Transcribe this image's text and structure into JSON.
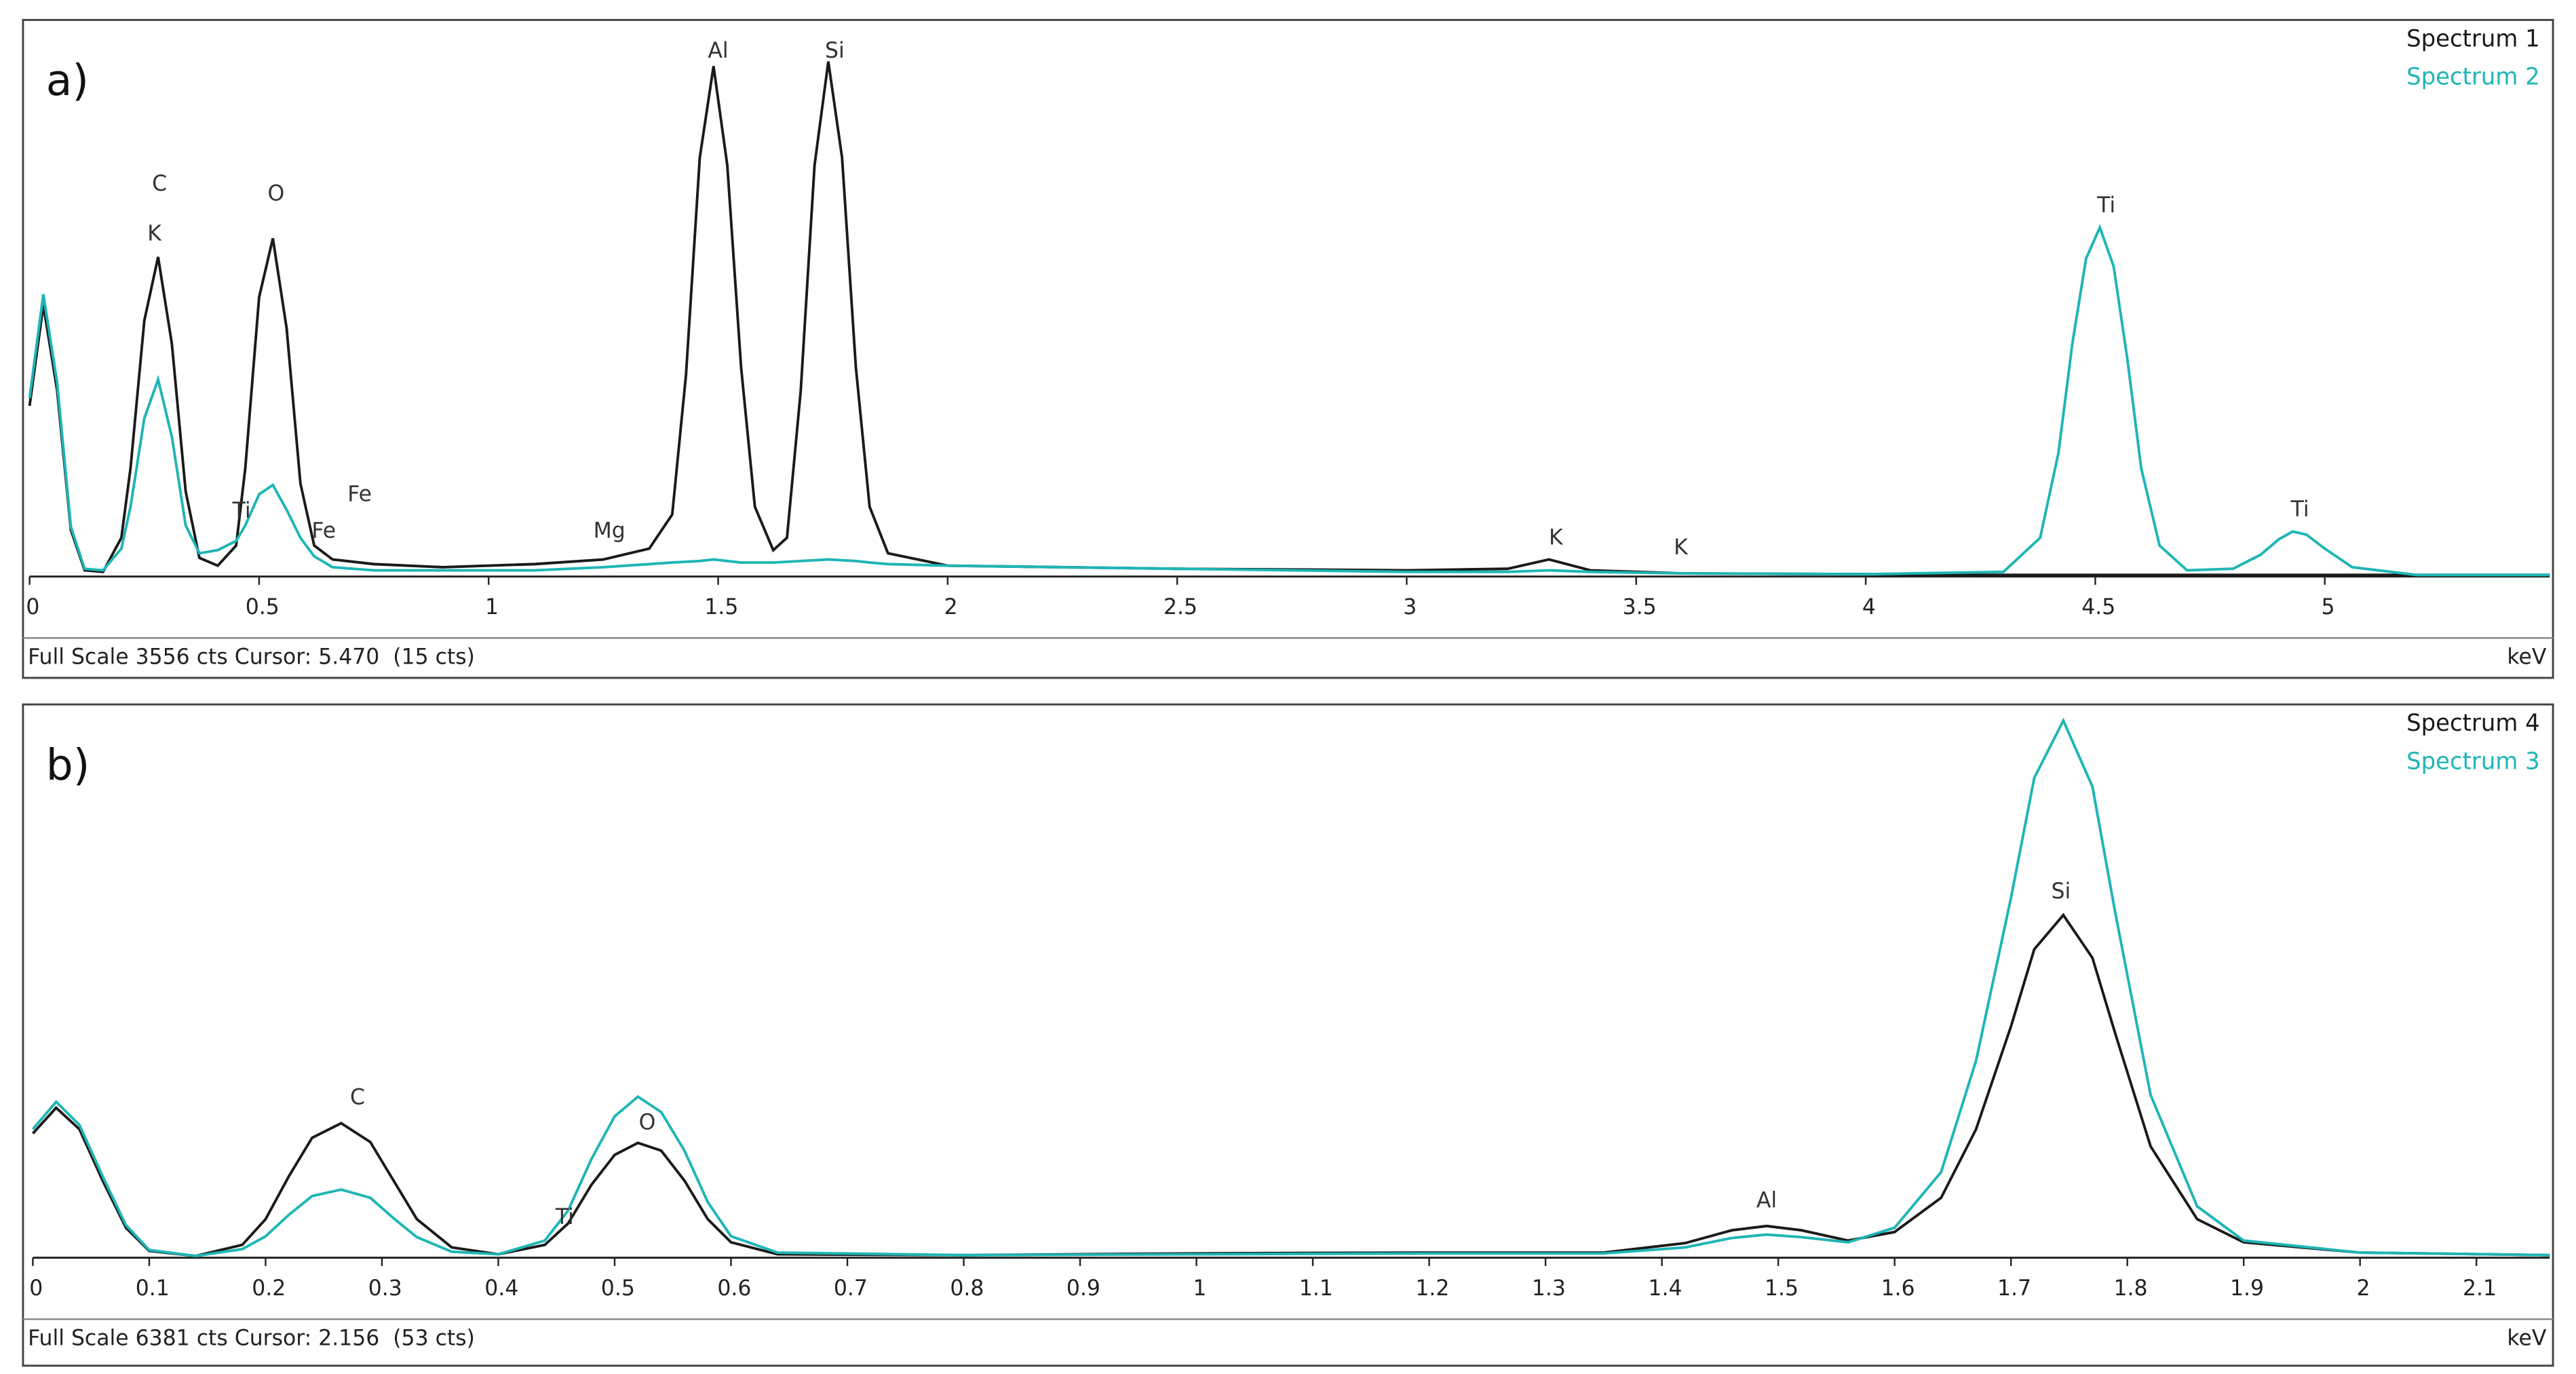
{
  "chart_data": [
    {
      "type": "line",
      "panel_label": "a)",
      "footer": "Full Scale 3556 cts Cursor: 5.470  (15 cts)",
      "xlabel": "keV",
      "legend": "upper right",
      "xlim": [
        0,
        5.49
      ],
      "ylim": [
        0,
        3556
      ],
      "xticks": [
        0,
        0.5,
        1,
        1.5,
        2,
        2.5,
        3,
        3.5,
        4,
        4.5,
        5
      ],
      "x": [
        0,
        0.03,
        0.06,
        0.09,
        0.12,
        0.16,
        0.2,
        0.22,
        0.25,
        0.28,
        0.31,
        0.34,
        0.37,
        0.41,
        0.45,
        0.47,
        0.5,
        0.53,
        0.56,
        0.59,
        0.62,
        0.66,
        0.75,
        0.9,
        1.1,
        1.25,
        1.35,
        1.4,
        1.43,
        1.46,
        1.49,
        1.52,
        1.55,
        1.58,
        1.62,
        1.65,
        1.68,
        1.71,
        1.74,
        1.77,
        1.8,
        1.83,
        1.87,
        2.0,
        2.5,
        3.0,
        3.22,
        3.31,
        3.4,
        3.6,
        4.0,
        4.3,
        4.38,
        4.42,
        4.45,
        4.48,
        4.51,
        4.54,
        4.57,
        4.6,
        4.64,
        4.7,
        4.8,
        4.86,
        4.9,
        4.93,
        4.96,
        5.0,
        5.06,
        5.2,
        5.49
      ],
      "series": [
        {
          "name": "Spectrum 1",
          "color": "#1a1a1a",
          "values": [
            1100,
            1750,
            1200,
            300,
            40,
            30,
            250,
            700,
            1650,
            2060,
            1500,
            550,
            120,
            70,
            200,
            700,
            1800,
            2180,
            1600,
            600,
            200,
            110,
            80,
            60,
            80,
            110,
            180,
            400,
            1300,
            2700,
            3290,
            2650,
            1350,
            450,
            170,
            250,
            1200,
            2650,
            3320,
            2700,
            1350,
            450,
            150,
            70,
            50,
            40,
            50,
            110,
            40,
            20,
            15,
            10,
            10,
            10,
            10,
            10,
            10,
            10,
            10,
            10,
            10,
            10,
            10,
            10,
            10,
            10,
            10,
            10,
            10,
            10,
            10
          ]
        },
        {
          "name": "Spectrum 2",
          "color": "#1fb5b5",
          "values": [
            1150,
            1820,
            1250,
            320,
            50,
            40,
            180,
            450,
            1020,
            1270,
            900,
            330,
            150,
            170,
            230,
            330,
            530,
            590,
            430,
            250,
            130,
            60,
            40,
            40,
            40,
            60,
            80,
            90,
            95,
            100,
            110,
            100,
            90,
            90,
            90,
            95,
            100,
            105,
            110,
            105,
            100,
            90,
            80,
            70,
            50,
            30,
            30,
            40,
            30,
            20,
            15,
            30,
            250,
            800,
            1500,
            2050,
            2250,
            2000,
            1400,
            700,
            200,
            40,
            50,
            140,
            240,
            290,
            270,
            180,
            60,
            10,
            10
          ]
        }
      ],
      "annotations": [
        {
          "text": "C",
          "x": 0.283,
          "y": 2528
        },
        {
          "text": "K",
          "x": 0.272,
          "y": 2206
        },
        {
          "text": "O",
          "x": 0.537,
          "y": 2463
        },
        {
          "text": "Al",
          "x": 1.5,
          "y": 3384
        },
        {
          "text": "Si",
          "x": 1.754,
          "y": 3384
        },
        {
          "text": "Ti",
          "x": 4.524,
          "y": 2388
        },
        {
          "text": "Ti",
          "x": 4.946,
          "y": 428
        },
        {
          "text": "Ti",
          "x": 0.462,
          "y": 418
        },
        {
          "text": "Fe",
          "x": 0.641,
          "y": 289
        },
        {
          "text": "Fe",
          "x": 0.719,
          "y": 525
        },
        {
          "text": "Mg",
          "x": 1.263,
          "y": 289
        },
        {
          "text": "K",
          "x": 3.325,
          "y": 246
        },
        {
          "text": "K",
          "x": 3.597,
          "y": 182
        }
      ]
    },
    {
      "type": "line",
      "panel_label": "b)",
      "footer": "Full Scale 6381 cts Cursor: 2.156  (53 cts)",
      "xlabel": "keV",
      "legend": "upper right",
      "xlim": [
        0,
        2.163
      ],
      "ylim": [
        0,
        6381
      ],
      "xticks": [
        0,
        0.1,
        0.2,
        0.3,
        0.4,
        0.5,
        0.6,
        0.7,
        0.8,
        0.9,
        1,
        1.1,
        1.2,
        1.3,
        1.4,
        1.5,
        1.6,
        1.7,
        1.8,
        1.9,
        2,
        2.1
      ],
      "x": [
        0,
        0.02,
        0.04,
        0.06,
        0.08,
        0.1,
        0.14,
        0.18,
        0.2,
        0.22,
        0.24,
        0.265,
        0.29,
        0.31,
        0.33,
        0.36,
        0.4,
        0.44,
        0.46,
        0.48,
        0.5,
        0.52,
        0.54,
        0.56,
        0.58,
        0.6,
        0.64,
        0.8,
        1.0,
        1.2,
        1.35,
        1.42,
        1.46,
        1.49,
        1.52,
        1.56,
        1.6,
        1.64,
        1.67,
        1.7,
        1.72,
        1.745,
        1.77,
        1.79,
        1.82,
        1.86,
        1.9,
        2.0,
        2.163
      ],
      "series": [
        {
          "name": "Spectrum 4",
          "color": "#1a1a1a",
          "values": [
            1450,
            1750,
            1500,
            900,
            350,
            80,
            20,
            150,
            450,
            950,
            1400,
            1570,
            1350,
            900,
            450,
            120,
            40,
            150,
            400,
            850,
            1200,
            1340,
            1250,
            900,
            450,
            180,
            40,
            30,
            50,
            60,
            60,
            170,
            320,
            370,
            320,
            200,
            300,
            700,
            1500,
            2700,
            3600,
            4000,
            3500,
            2600,
            1300,
            450,
            180,
            60,
            30
          ]
        },
        {
          "name": "Spectrum 3",
          "color": "#1fb5b5",
          "values": [
            1500,
            1820,
            1550,
            950,
            380,
            90,
            20,
            100,
            250,
            500,
            720,
            795,
            700,
            460,
            240,
            70,
            40,
            200,
            550,
            1150,
            1650,
            1880,
            1700,
            1250,
            650,
            250,
            60,
            30,
            40,
            50,
            50,
            120,
            230,
            270,
            240,
            180,
            350,
            1000,
            2300,
            4200,
            5600,
            6270,
            5500,
            4000,
            1900,
            600,
            200,
            60,
            30
          ]
        }
      ],
      "annotations": [
        {
          "text": "C",
          "x": 0.279,
          "y": 1862
        },
        {
          "text": "O",
          "x": 0.528,
          "y": 1571
        },
        {
          "text": "Ti",
          "x": 0.457,
          "y": 466
        },
        {
          "text": "Al",
          "x": 1.49,
          "y": 660
        },
        {
          "text": "Si",
          "x": 1.743,
          "y": 4268
        }
      ]
    }
  ]
}
